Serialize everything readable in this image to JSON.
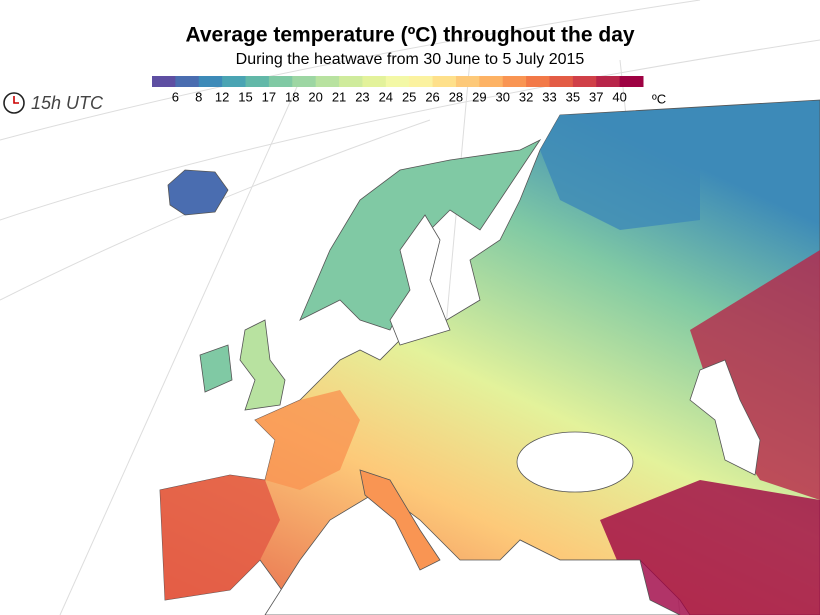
{
  "header": {
    "title": "Average temperature (ºC) throughout the day",
    "subtitle": "During the heatwave from 30 June to 5 July 2015"
  },
  "time_label": "15h UTC",
  "legend": {
    "ticks": [
      6,
      8,
      12,
      15,
      17,
      18,
      20,
      21,
      23,
      24,
      25,
      26,
      28,
      29,
      30,
      32,
      33,
      35,
      37,
      40
    ],
    "unit": "ºC",
    "colors": [
      "#5e4fa2",
      "#4a6db0",
      "#3d8ab8",
      "#4aa4b3",
      "#62b8a8",
      "#80c9a4",
      "#9dd6a3",
      "#b8e2a0",
      "#cfeb9c",
      "#e3f29b",
      "#f3f8a6",
      "#fbf2a0",
      "#fee08b",
      "#fdc979",
      "#fdb264",
      "#f99553",
      "#f27948",
      "#e35c45",
      "#d04048",
      "#b82549",
      "#9e0142"
    ]
  }
}
